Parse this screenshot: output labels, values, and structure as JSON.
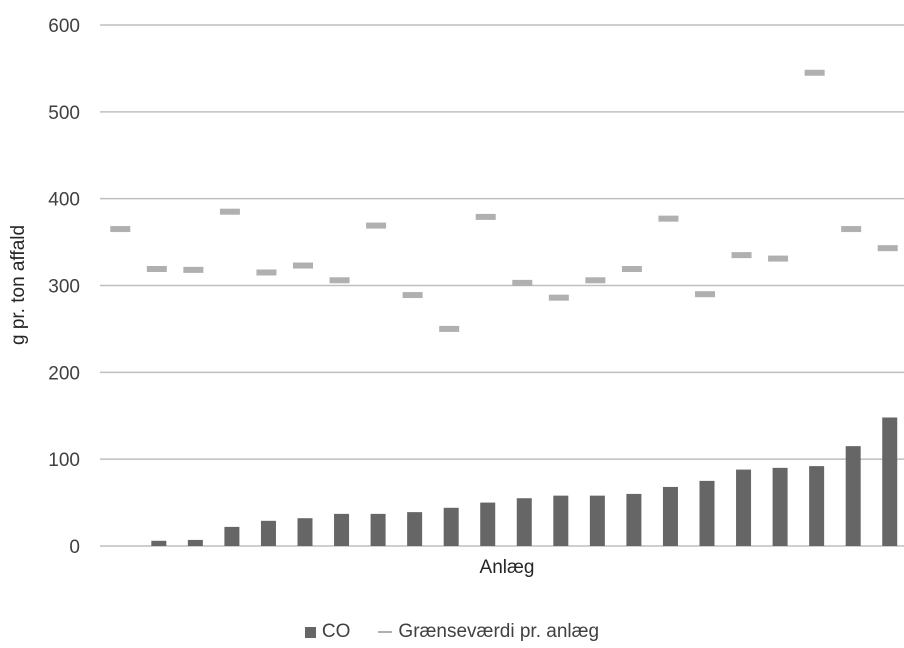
{
  "chart_data": {
    "type": "bar",
    "xlabel": "Anlæg",
    "ylabel": "g pr. ton affald",
    "ylim": [
      0,
      600
    ],
    "yticks": [
      0,
      100,
      200,
      300,
      400,
      500,
      600
    ],
    "grid": true,
    "legend_position": "bottom",
    "series": [
      {
        "name": "CO",
        "kind": "bar",
        "color": "#666666",
        "values": [
          0,
          6,
          7,
          22,
          29,
          32,
          37,
          37,
          39,
          44,
          50,
          55,
          58,
          58,
          60,
          68,
          75,
          88,
          90,
          92,
          115,
          148
        ]
      },
      {
        "name": "Grænseværdi pr. anlæg",
        "kind": "marker",
        "color": "#b0b0b0",
        "values": [
          365,
          319,
          318,
          385,
          315,
          323,
          306,
          369,
          289,
          250,
          379,
          303,
          286,
          306,
          319,
          377,
          290,
          335,
          331,
          545,
          365,
          343
        ]
      }
    ]
  }
}
